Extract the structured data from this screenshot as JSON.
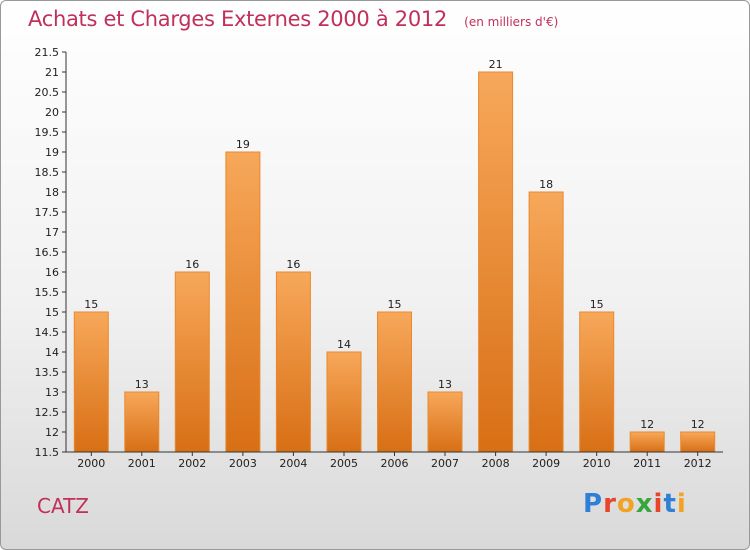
{
  "header": {
    "title": "Achats et Charges Externes 2000 à 2012",
    "unit": "(en milliers d'€)"
  },
  "footer": {
    "city": "CATZ",
    "logo_letters": [
      "P",
      "r",
      "o",
      "x",
      "i",
      "t",
      "i"
    ],
    "logo_colors": [
      "#2e7fd6",
      "#e8442c",
      "#f2a323",
      "#37a63c",
      "#e8442c",
      "#2e7fd6",
      "#f2a323"
    ]
  },
  "chart_data": {
    "type": "bar",
    "title": "Achats et Charges Externes 2000 à 2012",
    "subtitle": "(en milliers d'€)",
    "categories": [
      "2000",
      "2001",
      "2002",
      "2003",
      "2004",
      "2005",
      "2006",
      "2007",
      "2008",
      "2009",
      "2010",
      "2011",
      "2012"
    ],
    "values": [
      15,
      13,
      16,
      19,
      16,
      14,
      15,
      13,
      21,
      18,
      15,
      12,
      12
    ],
    "data_labels": [
      "15",
      "13",
      "16",
      "19",
      "16",
      "14",
      "15",
      "13",
      "21",
      "18",
      "15",
      "12",
      "12"
    ],
    "ylim": [
      11.5,
      21.5
    ],
    "yticks": [
      "11.5",
      "12",
      "12.5",
      "13",
      "13.5",
      "14",
      "14.5",
      "15",
      "15.5",
      "16",
      "16.5",
      "17",
      "17.5",
      "18",
      "18.5",
      "19",
      "19.5",
      "20",
      "20.5",
      "21",
      "21.5"
    ],
    "grid": false,
    "colors": {
      "bar_top": "#f7a85a",
      "bar_bottom": "#d86f15",
      "bar_edge": "#e9892f",
      "axis": "#333333",
      "title": "#c0305a"
    }
  }
}
